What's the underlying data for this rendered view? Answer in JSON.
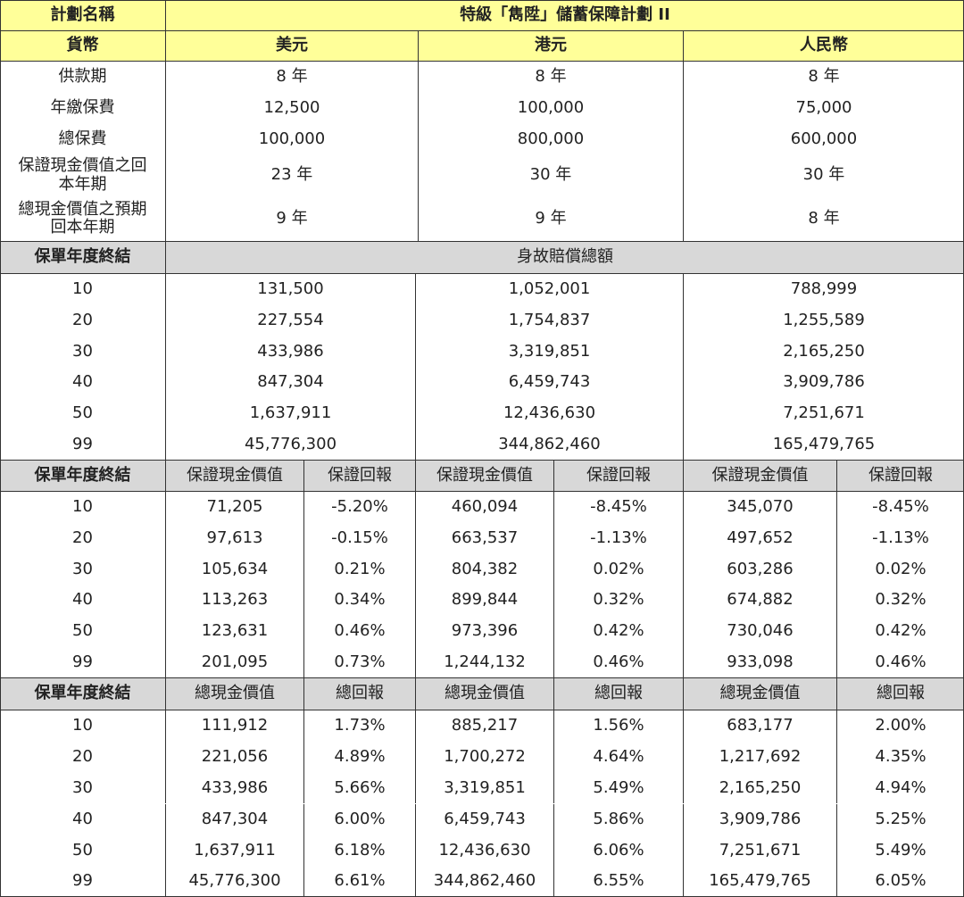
{
  "header": {
    "plan_label": "計劃名稱",
    "plan_name": "特級「雋陞」儲蓄保障計劃 II",
    "currency_label": "貨幣",
    "currencies": [
      "美元",
      "港元",
      "人民幣"
    ]
  },
  "summary": [
    {
      "label": "供款期",
      "values": [
        "8 年",
        "8 年",
        "8 年"
      ]
    },
    {
      "label": "年繳保費",
      "values": [
        "12,500",
        "100,000",
        "75,000"
      ]
    },
    {
      "label": "總保費",
      "values": [
        "100,000",
        "800,000",
        "600,000"
      ]
    },
    {
      "label": "保證現金價值之回本年期",
      "values": [
        "23 年",
        "30 年",
        "30 年"
      ]
    },
    {
      "label": "總現金價值之預期回本年期",
      "values": [
        "9 年",
        "9 年",
        "8 年"
      ]
    }
  ],
  "death_benefit": {
    "year_label": "保單年度終結",
    "title": "身故賠償總額",
    "rows": [
      {
        "year": "10",
        "values": [
          "131,500",
          "1,052,001",
          "788,999"
        ]
      },
      {
        "year": "20",
        "values": [
          "227,554",
          "1,754,837",
          "1,255,589"
        ]
      },
      {
        "year": "30",
        "values": [
          "433,986",
          "3,319,851",
          "2,165,250"
        ]
      },
      {
        "year": "40",
        "values": [
          "847,304",
          "6,459,743",
          "3,909,786"
        ]
      },
      {
        "year": "50",
        "values": [
          "1,637,911",
          "12,436,630",
          "7,251,671"
        ]
      },
      {
        "year": "99",
        "values": [
          "45,776,300",
          "344,862,460",
          "165,479,765"
        ]
      }
    ]
  },
  "guaranteed": {
    "year_label": "保單年度終結",
    "value_label": "保證現金價值",
    "return_label": "保證回報",
    "rows": [
      {
        "year": "10",
        "values": [
          "71,205",
          "-5.20%",
          "460,094",
          "-8.45%",
          "345,070",
          "-8.45%"
        ]
      },
      {
        "year": "20",
        "values": [
          "97,613",
          "-0.15%",
          "663,537",
          "-1.13%",
          "497,652",
          "-1.13%"
        ]
      },
      {
        "year": "30",
        "values": [
          "105,634",
          "0.21%",
          "804,382",
          "0.02%",
          "603,286",
          "0.02%"
        ]
      },
      {
        "year": "40",
        "values": [
          "113,263",
          "0.34%",
          "899,844",
          "0.32%",
          "674,882",
          "0.32%"
        ]
      },
      {
        "year": "50",
        "values": [
          "123,631",
          "0.46%",
          "973,396",
          "0.42%",
          "730,046",
          "0.42%"
        ]
      },
      {
        "year": "99",
        "values": [
          "201,095",
          "0.73%",
          "1,244,132",
          "0.46%",
          "933,098",
          "0.46%"
        ]
      }
    ]
  },
  "total": {
    "year_label": "保單年度終結",
    "value_label": "總現金價值",
    "return_label": "總回報",
    "rows": [
      {
        "year": "10",
        "values": [
          "111,912",
          "1.73%",
          "885,217",
          "1.56%",
          "683,177",
          "2.00%"
        ]
      },
      {
        "year": "20",
        "values": [
          "221,056",
          "4.89%",
          "1,700,272",
          "4.64%",
          "1,217,692",
          "4.35%"
        ]
      },
      {
        "year": "30",
        "values": [
          "433,986",
          "5.66%",
          "3,319,851",
          "5.49%",
          "2,165,250",
          "4.94%"
        ]
      },
      {
        "year": "40",
        "values": [
          "847,304",
          "6.00%",
          "6,459,743",
          "5.86%",
          "3,909,786",
          "5.25%"
        ]
      },
      {
        "year": "50",
        "values": [
          "1,637,911",
          "6.18%",
          "12,436,630",
          "6.06%",
          "7,251,671",
          "5.49%"
        ]
      },
      {
        "year": "99",
        "values": [
          "45,776,300",
          "6.61%",
          "344,862,460",
          "6.55%",
          "165,479,765",
          "6.05%"
        ]
      }
    ]
  }
}
